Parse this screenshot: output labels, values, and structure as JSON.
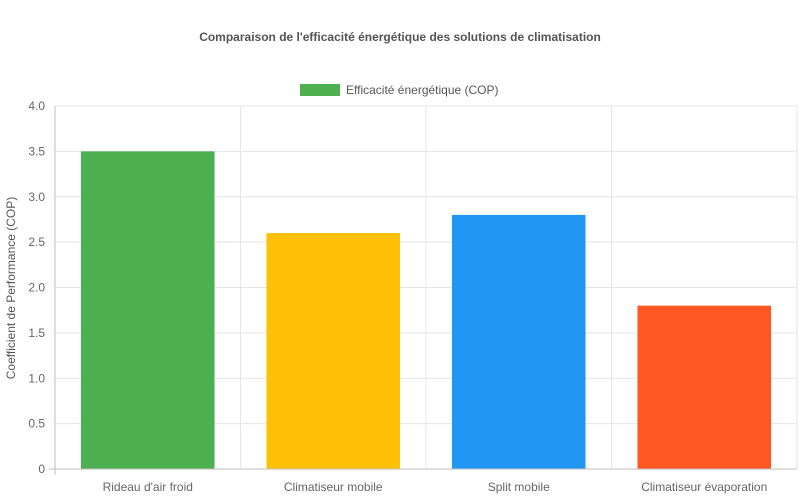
{
  "chart_data": {
    "type": "bar",
    "title": "Comparaison de l'efficacité énergétique des solutions de climatisation",
    "legend": {
      "label": "Efficacité énergétique (COP)",
      "color": "#4caf50",
      "position": "top"
    },
    "ylabel": "Coefficient de Performance (COP)",
    "xlabel": "",
    "ylim": [
      0,
      4
    ],
    "yticks": [
      "0",
      "0.5",
      "1.0",
      "1.5",
      "2.0",
      "2.5",
      "3.0",
      "3.5",
      "4.0"
    ],
    "categories": [
      "Rideau d'air froid",
      "Climatiseur mobile",
      "Split mobile",
      "Climatiseur évaporation"
    ],
    "series": [
      {
        "name": "Efficacité énergétique (COP)",
        "values": [
          3.5,
          2.6,
          2.8,
          1.8
        ],
        "colors": [
          "#4caf50",
          "#ffc107",
          "#2196f3",
          "#ff5722"
        ]
      }
    ],
    "grid": true
  }
}
